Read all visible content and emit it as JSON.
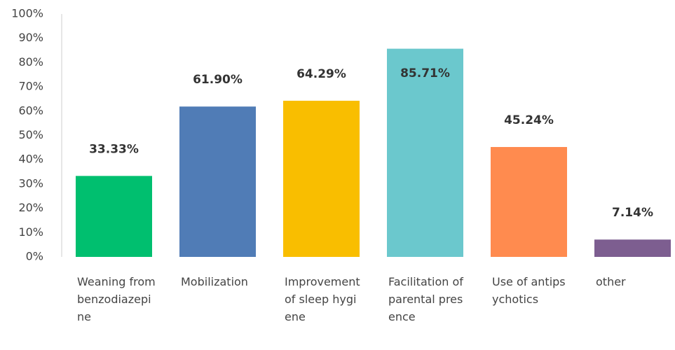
{
  "chart_data": {
    "type": "bar",
    "categories": [
      "Weaning from benzodiazepine",
      "Mobilization",
      "Improvement of sleep hygiene",
      "Facilitation of parental presence",
      "Use of antipsychotics",
      "other"
    ],
    "values": [
      33.33,
      61.9,
      64.29,
      85.71,
      45.24,
      7.14
    ],
    "value_labels": [
      "33.33%",
      "61.90%",
      "64.29%",
      "85.71%",
      "45.24%",
      "7.14%"
    ],
    "colors": [
      "#00bf6f",
      "#507cb6",
      "#f9be00",
      "#6bc8cd",
      "#ff8b4f",
      "#7d5e90"
    ],
    "ylim": [
      0,
      100
    ],
    "yticks": [
      {
        "value": 0,
        "label": "0%"
      },
      {
        "value": 10,
        "label": "10%"
      },
      {
        "value": 20,
        "label": "20%"
      },
      {
        "value": 30,
        "label": "30%"
      },
      {
        "value": 40,
        "label": "40%"
      },
      {
        "value": 50,
        "label": "50%"
      },
      {
        "value": 60,
        "label": "60%"
      },
      {
        "value": 70,
        "label": "70%"
      },
      {
        "value": 80,
        "label": "80%"
      },
      {
        "value": 90,
        "label": "90%"
      },
      {
        "value": 100,
        "label": "100%"
      }
    ],
    "grid": false
  }
}
